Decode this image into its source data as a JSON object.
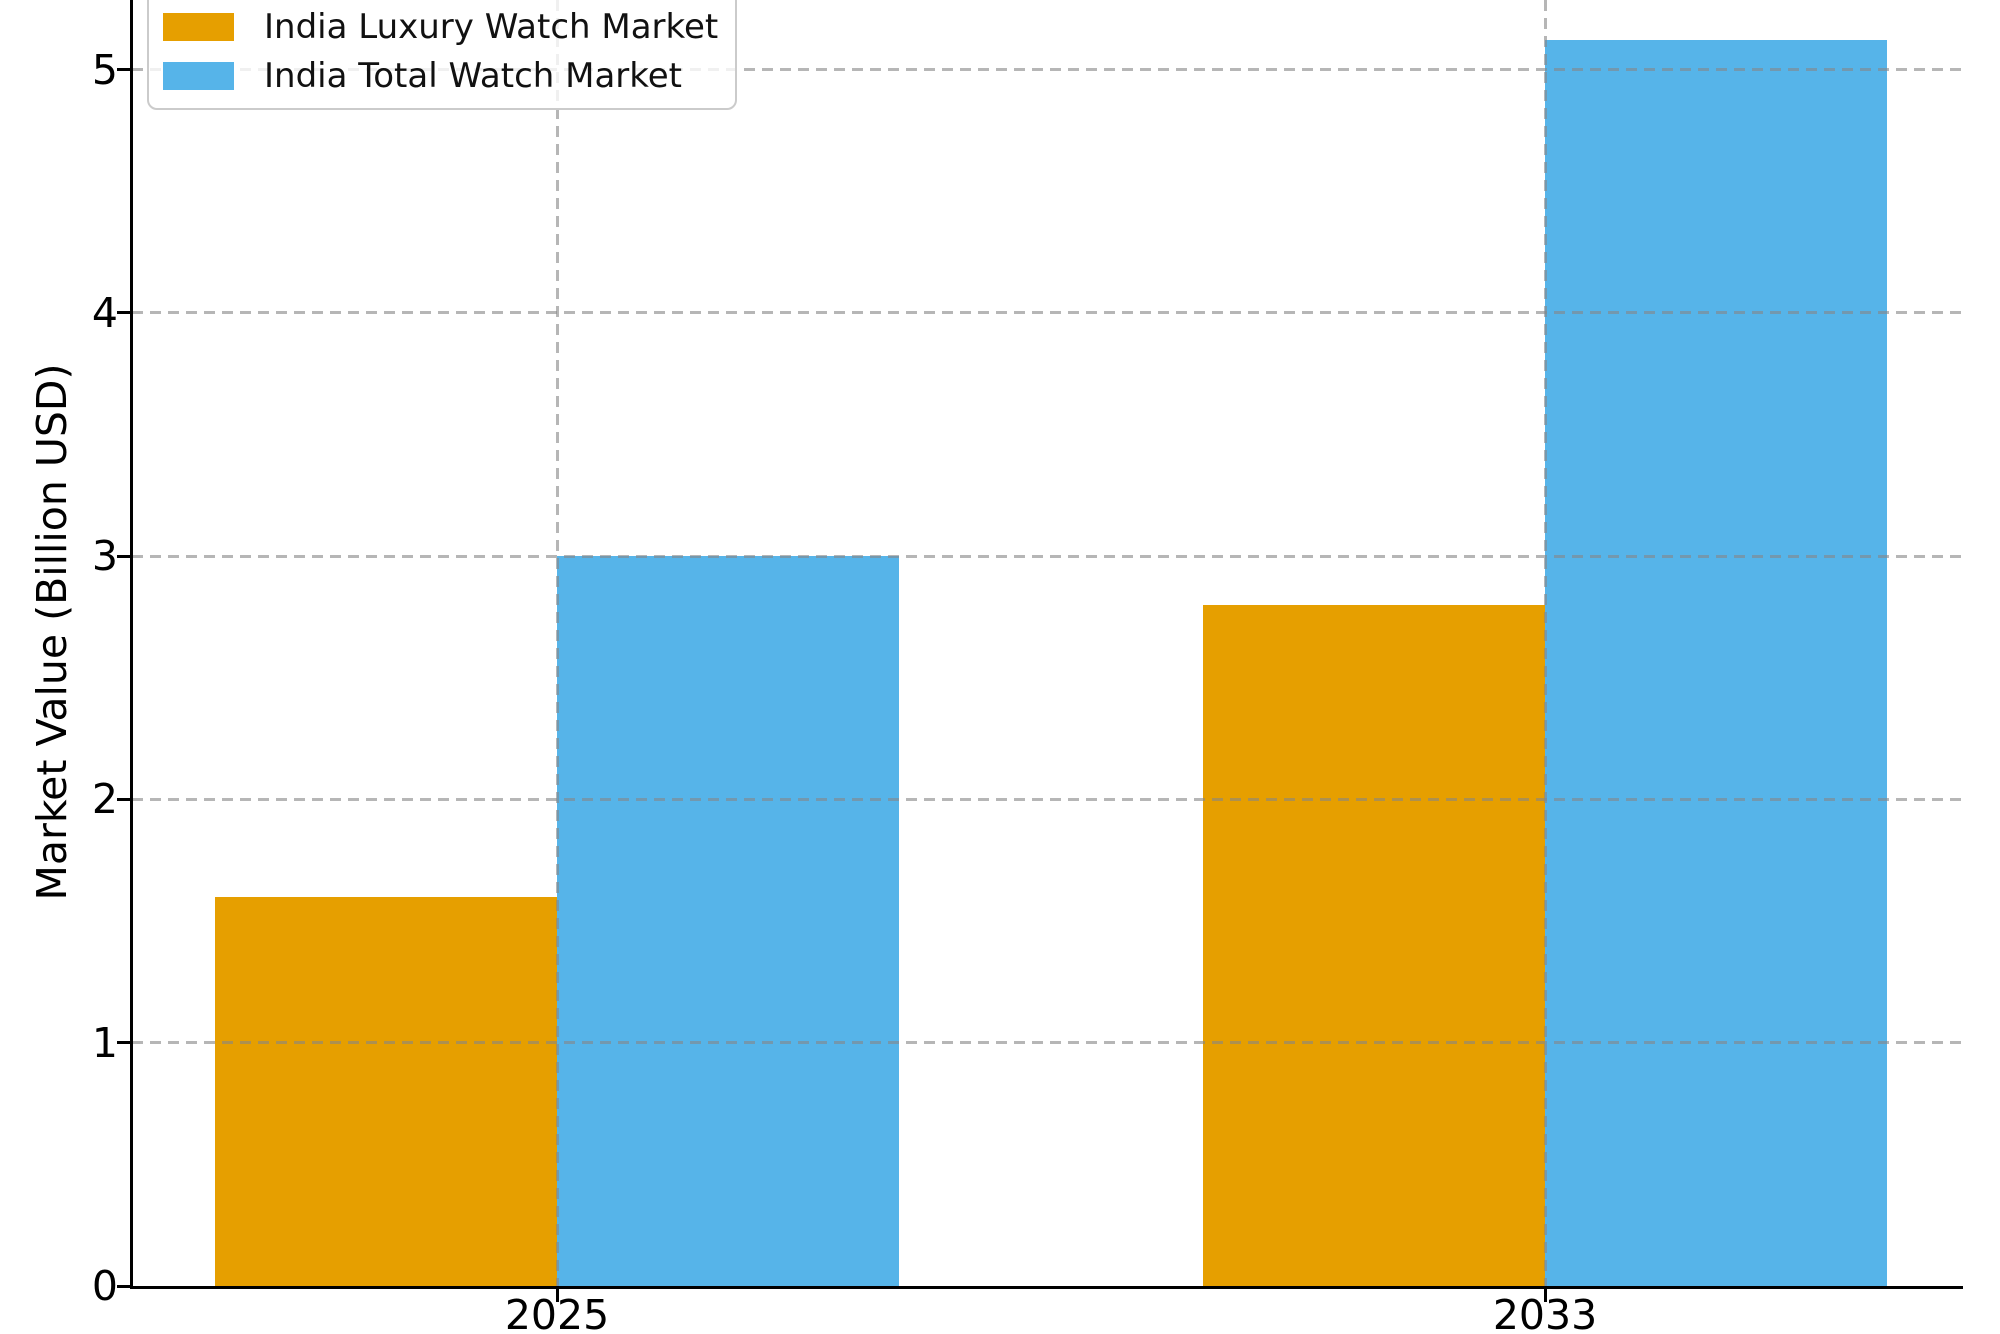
{
  "chart_data": {
    "type": "bar",
    "title": "",
    "categories": [
      "2025",
      "2033"
    ],
    "series": [
      {
        "name": "India Luxury Watch Market",
        "color": "#E69F00",
        "values": [
          1.6,
          2.8
        ]
      },
      {
        "name": "India Total Watch Market",
        "color": "#56B4E9",
        "values": [
          3.0,
          5.12
        ]
      }
    ],
    "xlabel": "",
    "ylabel": "Market Value (Billion USD)",
    "yticks": [
      0,
      1,
      2,
      3,
      4,
      5
    ],
    "ylim": [
      0,
      5.29
    ],
    "grid": "dashed gridlines, horizontal at each y tick and vertical at each category, drawn over the bars",
    "legend_position": "upper left, clipped at top edge of image",
    "axis_color": "#000000",
    "background_color": "#ffffff"
  }
}
